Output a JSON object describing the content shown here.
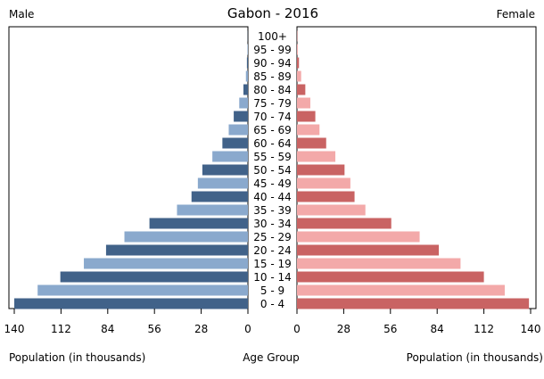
{
  "chart_data": {
    "type": "bar",
    "title": "Gabon - 2016",
    "left_heading": "Male",
    "right_heading": "Female",
    "xlabel_left": "Population (in thousands)",
    "xlabel_center": "Age Group",
    "xlabel_right": "Population (in thousands)",
    "xlim": [
      0,
      140
    ],
    "ticks_left": [
      "140",
      "112",
      "84",
      "56",
      "28",
      "0"
    ],
    "ticks_right": [
      "0",
      "28",
      "56",
      "84",
      "112",
      "140"
    ],
    "categories": [
      "100+",
      "95 - 99",
      "90 - 94",
      "85 - 89",
      "80 - 84",
      "75 - 79",
      "70 - 74",
      "65 - 69",
      "60 - 64",
      "55 - 59",
      "50 - 54",
      "45 - 49",
      "40 - 44",
      "35 - 39",
      "30 - 34",
      "25 - 29",
      "20 - 24",
      "15 - 19",
      "10 - 14",
      "5 - 9",
      "0 - 4"
    ],
    "series": [
      {
        "name": "Male",
        "values": [
          0.1,
          0.3,
          0.6,
          1.2,
          2.7,
          5.2,
          8.5,
          11.5,
          15.3,
          21.3,
          27.3,
          30.0,
          33.8,
          42.5,
          59.0,
          74.0,
          85.0,
          98.3,
          112.4,
          126.0,
          140.0
        ]
      },
      {
        "name": "Female",
        "values": [
          0.2,
          0.5,
          1.2,
          2.5,
          5.0,
          8.0,
          11.0,
          13.5,
          17.5,
          23.0,
          28.5,
          32.0,
          34.5,
          41.0,
          56.5,
          73.5,
          85.0,
          98.0,
          112.0,
          124.5,
          139.0
        ]
      }
    ],
    "colors": {
      "male_dark": "#416289",
      "male_light": "#8aa9cd",
      "female_dark": "#c96363",
      "female_light": "#f3a9a9"
    }
  }
}
